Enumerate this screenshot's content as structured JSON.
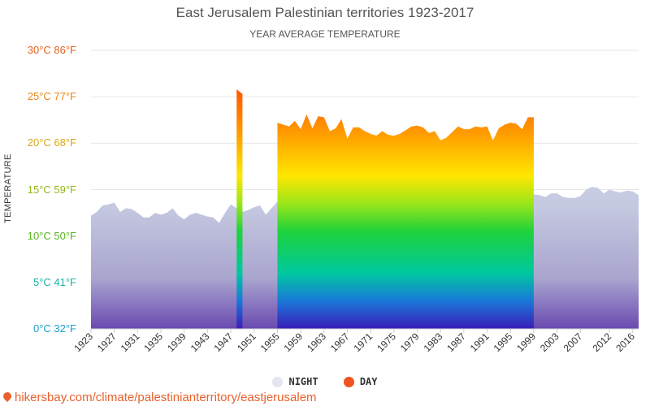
{
  "title": "East Jerusalem Palestinian territories 1923-2017",
  "subtitle": "YEAR AVERAGE TEMPERATURE",
  "y_axis_title": "TEMPERATURE",
  "source": "hikersbay.com/climate/palestinianterritory/eastjerusalem",
  "legend": {
    "night": "NIGHT",
    "day": "DAY"
  },
  "colors": {
    "night_fill": "#c9cde4",
    "night_legend": "#e3e6ef",
    "day_legend": "#f0531e",
    "grid": "#e6e6e6",
    "source_text": "#e8612c"
  },
  "chart_data": {
    "type": "area",
    "title": "East Jerusalem Palestinian territories 1923-2017",
    "subtitle": "YEAR AVERAGE TEMPERATURE",
    "ylabel": "TEMPERATURE",
    "ylim": [
      0,
      30
    ],
    "y_ticks": [
      {
        "value": 0,
        "label": "0°C 32°F",
        "color": "#1b9fc8"
      },
      {
        "value": 5,
        "label": "5°C 41°F",
        "color": "#19b2a4"
      },
      {
        "value": 10,
        "label": "10°C 50°F",
        "color": "#5ab21f"
      },
      {
        "value": 15,
        "label": "15°C 59°F",
        "color": "#8fb81c"
      },
      {
        "value": 20,
        "label": "20°C 68°F",
        "color": "#d9a617"
      },
      {
        "value": 25,
        "label": "25°C 77°F",
        "color": "#e8861a"
      },
      {
        "value": 30,
        "label": "30°C 86°F",
        "color": "#e5611a"
      }
    ],
    "x_range": [
      1923,
      2017
    ],
    "x_tick_labels": [
      "1923",
      "1927",
      "1931",
      "1935",
      "1939",
      "1943",
      "1947",
      "1951",
      "1955",
      "1959",
      "1963",
      "1967",
      "1971",
      "1975",
      "1979",
      "1983",
      "1987",
      "1991",
      "1995",
      "1999",
      "2003",
      "2007",
      "2012",
      "2016"
    ],
    "legend_position": "bottom",
    "grid": true,
    "series": [
      {
        "name": "NIGHT",
        "x": [
          1923,
          1924,
          1925,
          1926,
          1927,
          1928,
          1929,
          1930,
          1931,
          1932,
          1933,
          1934,
          1935,
          1936,
          1937,
          1938,
          1939,
          1940,
          1941,
          1942,
          1943,
          1944,
          1945,
          1946,
          1947,
          1948,
          1949,
          1950,
          1951,
          1952,
          1953,
          1954,
          1955,
          1956,
          1957,
          1958,
          1959,
          1960,
          1961,
          1962,
          1963,
          1964,
          1965,
          1966,
          1967,
          1968,
          1969,
          1970,
          1971,
          1972,
          1973,
          1974,
          1975,
          1976,
          1977,
          1978,
          1979,
          1980,
          1981,
          1982,
          1983,
          1984,
          1985,
          1986,
          1987,
          1988,
          1989,
          1990,
          1991,
          1992,
          1993,
          1994,
          1995,
          1996,
          1997,
          1998,
          1999,
          2000,
          2001,
          2002,
          2003,
          2004,
          2005,
          2006,
          2007,
          2008,
          2009,
          2010,
          2011,
          2012,
          2013,
          2014,
          2015,
          2016,
          2017
        ],
        "values": [
          12.2,
          12.6,
          13.3,
          13.4,
          13.6,
          12.6,
          13.0,
          12.9,
          12.5,
          12.0,
          12.0,
          12.5,
          12.3,
          12.5,
          13.0,
          12.2,
          11.8,
          12.3,
          12.5,
          12.3,
          12.1,
          12.0,
          11.4,
          12.5,
          13.4,
          13.0,
          12.6,
          12.8,
          13.1,
          13.3,
          12.3,
          13.0,
          13.7,
          13.0,
          13.5,
          13.0,
          12.6,
          13.8,
          12.6,
          13.5,
          14.0,
          13.1,
          13.0,
          13.5,
          12.7,
          13.6,
          13.1,
          13.0,
          12.9,
          13.5,
          13.2,
          13.3,
          13.1,
          13.1,
          13.2,
          13.6,
          13.9,
          13.7,
          13.0,
          13.0,
          12.9,
          13.5,
          13.3,
          13.8,
          13.5,
          13.4,
          13.6,
          13.5,
          13.6,
          12.8,
          13.6,
          14.0,
          13.9,
          13.6,
          13.8,
          14.2,
          14.5,
          14.4,
          14.2,
          14.6,
          14.6,
          14.2,
          14.1,
          14.1,
          14.3,
          15.0,
          15.3,
          15.2,
          14.6,
          15.0,
          14.8,
          14.7,
          14.9,
          14.8,
          14.4
        ]
      },
      {
        "name": "DAY",
        "x": [
          1948,
          1949,
          1955,
          1956,
          1957,
          1958,
          1959,
          1960,
          1961,
          1962,
          1963,
          1964,
          1965,
          1966,
          1967,
          1968,
          1969,
          1970,
          1971,
          1972,
          1973,
          1974,
          1975,
          1976,
          1977,
          1978,
          1979,
          1980,
          1981,
          1982,
          1983,
          1984,
          1985,
          1986,
          1987,
          1988,
          1989,
          1990,
          1991,
          1992,
          1993,
          1994,
          1995,
          1996,
          1997,
          1998,
          1999
        ],
        "values": [
          25.8,
          25.3,
          22.2,
          22.0,
          21.8,
          22.4,
          21.5,
          23.1,
          21.6,
          22.9,
          22.8,
          21.3,
          21.6,
          22.6,
          20.5,
          21.7,
          21.7,
          21.3,
          21.0,
          20.8,
          21.3,
          20.9,
          20.8,
          21.0,
          21.4,
          21.8,
          21.9,
          21.7,
          21.1,
          21.3,
          20.3,
          20.6,
          21.2,
          21.8,
          21.5,
          21.5,
          21.8,
          21.7,
          21.8,
          20.3,
          21.6,
          22.0,
          22.2,
          22.1,
          21.5,
          22.8,
          22.8
        ]
      }
    ]
  }
}
